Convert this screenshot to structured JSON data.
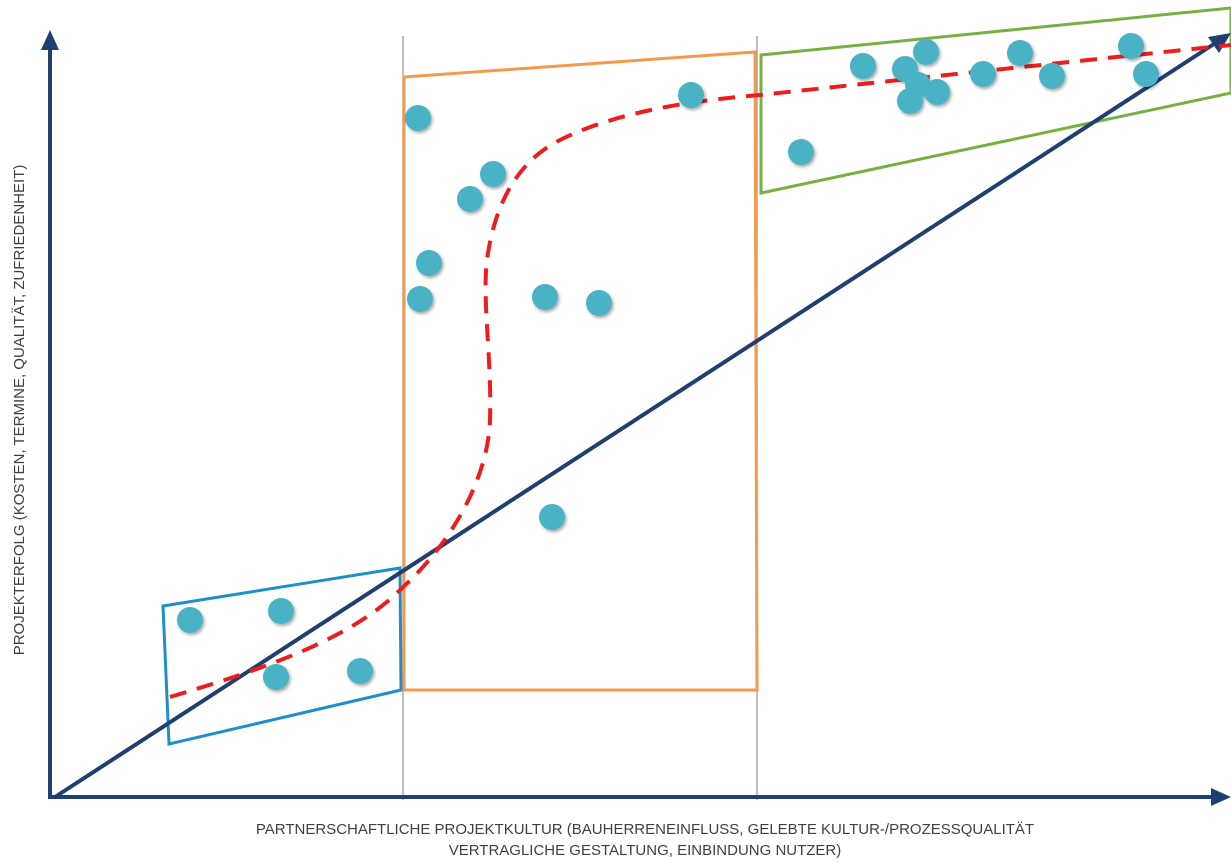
{
  "diagram": {
    "y_axis_label": "PROJEKTERFOLG (KOSTEN, TERMINE, QUALITÄT, ZUFRIEDENHEIT)",
    "x_axis_label_line1": "PARTNERSCHAFTLICHE PROJEKTKULTUR (BAUHERRENEINFLUSS, GELEBTE KULTUR-/PROZESSQUALITÄT",
    "x_axis_label_line2": "VERTRAGLICHE GESTALTUNG, EINBINDUNG NUTZER)",
    "colors": {
      "axis": "#1f3f73",
      "trend_line": "#1f3f73",
      "curve": "#ee1c1c",
      "points": "#4ab2c5",
      "low_region": "#1f8ec9",
      "mid_region": "#f39a4f",
      "high_region": "#76b043",
      "dividers": "#a6a6a6"
    }
  }
}
